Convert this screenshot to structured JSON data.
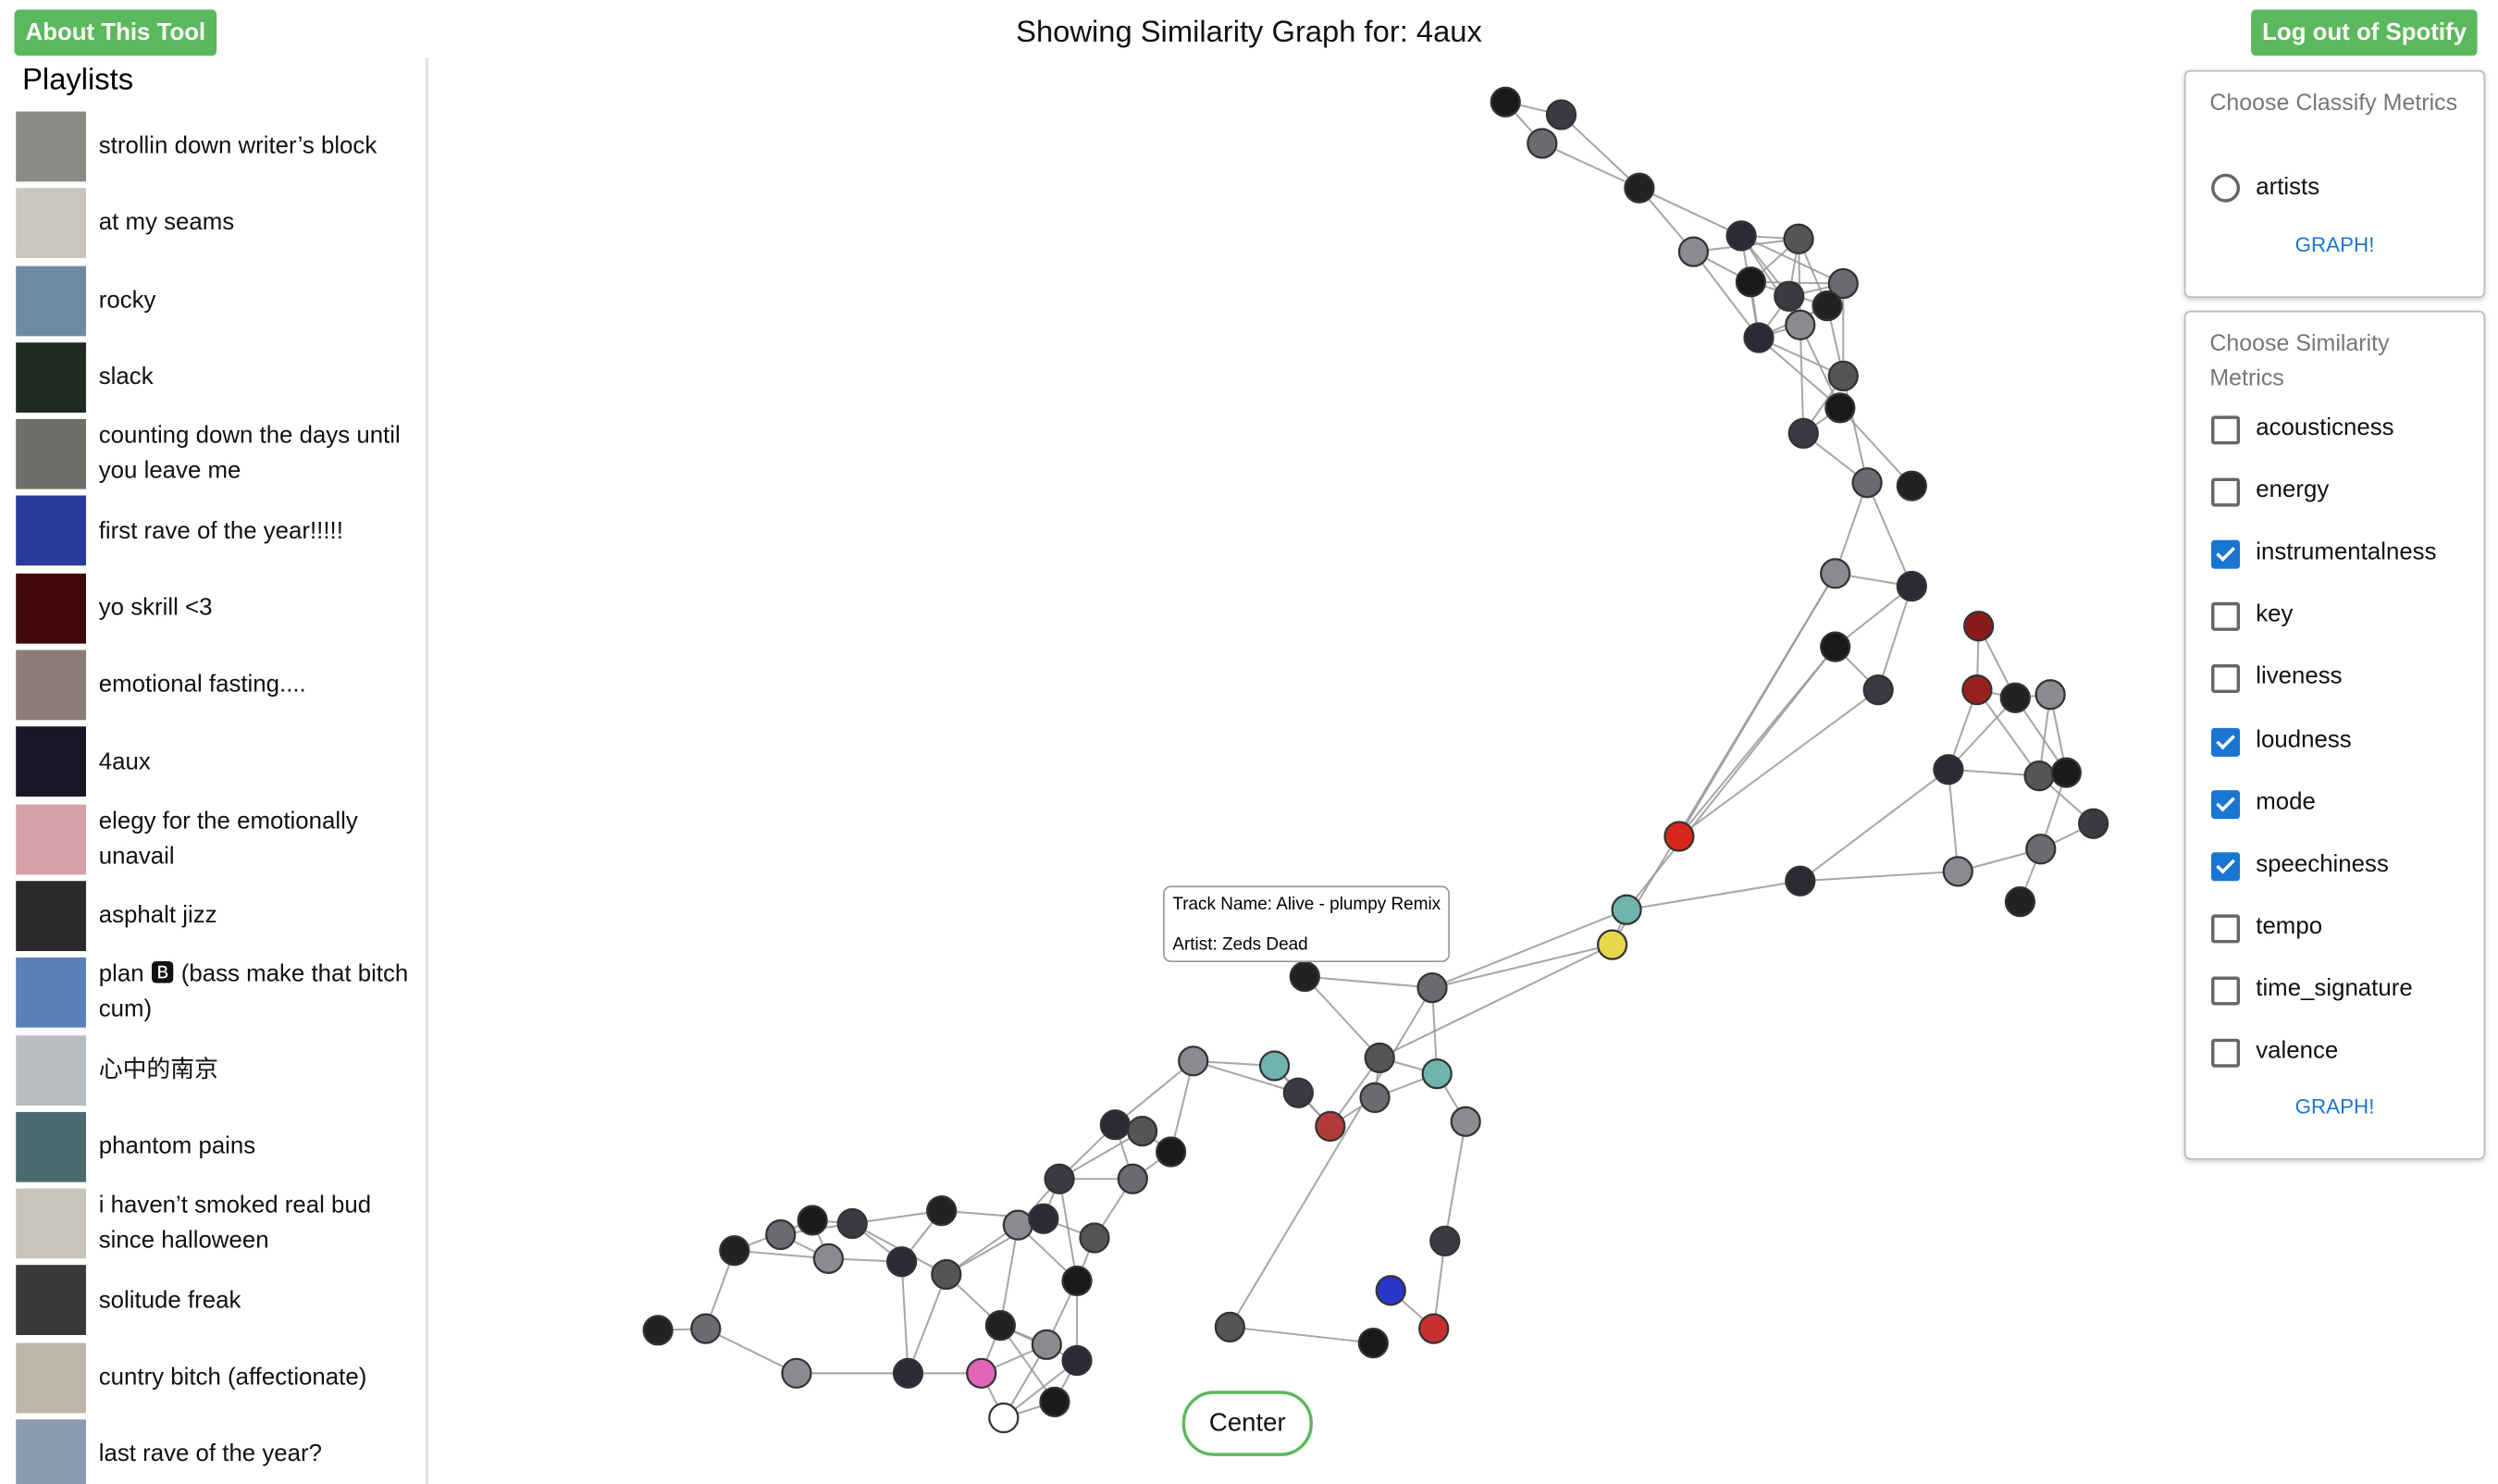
{
  "header": {
    "about_button": "About This Tool",
    "title": "Showing Similarity Graph for: 4aux",
    "logout_button": "Log out of Spotify"
  },
  "sidebar": {
    "title": "Playlists",
    "playlists": [
      "strollin down writer’s block",
      "at my seams",
      "rocky",
      "slack",
      "counting down the days until you leave me",
      "first rave of the year!!!!!",
      "yo skrill <3",
      "emotional fasting....",
      "4aux",
      "elegy for the emotionally unavail",
      "asphalt jizz",
      "plan 🅱 (bass make that bitch cum)",
      "心中的南京",
      "phantom pains",
      "i haven’t smoked real bud since halloween",
      "solitude freak",
      "cuntry bitch (affectionate)",
      "last rave of the year?"
    ]
  },
  "classify_panel": {
    "title": "Choose Classify Metrics",
    "options": [
      {
        "label": "artists",
        "checked": false
      }
    ],
    "button": "GRAPH!"
  },
  "similarity_panel": {
    "title": "Choose Similarity Metrics",
    "options": [
      {
        "label": "acousticness",
        "checked": false
      },
      {
        "label": "energy",
        "checked": false
      },
      {
        "label": "instrumentalness",
        "checked": true
      },
      {
        "label": "key",
        "checked": false
      },
      {
        "label": "liveness",
        "checked": false
      },
      {
        "label": "loudness",
        "checked": true
      },
      {
        "label": "mode",
        "checked": true
      },
      {
        "label": "speechiness",
        "checked": true
      },
      {
        "label": "tempo",
        "checked": false
      },
      {
        "label": "time_signature",
        "checked": false
      },
      {
        "label": "valence",
        "checked": false
      }
    ],
    "button": "GRAPH!"
  },
  "tooltip": {
    "track": "Track Name: Alive - plumpy Remix",
    "artist": "Artist: Zeds Dead"
  },
  "center_button": "Center"
}
